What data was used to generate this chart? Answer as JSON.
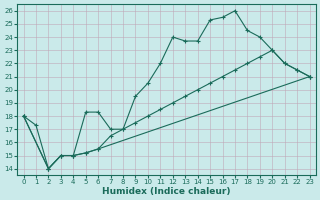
{
  "xlabel": "Humidex (Indice chaleur)",
  "ylabel": "",
  "background_color": "#caeaea",
  "line_color": "#1a6b5a",
  "xlim": [
    -0.5,
    23.5
  ],
  "ylim": [
    13.5,
    26.5
  ],
  "xticks": [
    0,
    1,
    2,
    3,
    4,
    5,
    6,
    7,
    8,
    9,
    10,
    11,
    12,
    13,
    14,
    15,
    16,
    17,
    18,
    19,
    20,
    21,
    22,
    23
  ],
  "yticks": [
    14,
    15,
    16,
    17,
    18,
    19,
    20,
    21,
    22,
    23,
    24,
    25,
    26
  ],
  "line1_x": [
    0,
    1,
    2,
    3,
    4,
    5,
    6,
    7,
    8,
    9,
    10,
    11,
    12,
    13,
    14,
    15,
    16,
    17,
    18,
    19,
    20,
    21,
    22,
    23
  ],
  "line1_y": [
    18,
    17.3,
    14,
    15,
    15,
    18.3,
    18.3,
    17,
    17,
    19.5,
    20.5,
    22,
    24,
    23.7,
    23.7,
    25.3,
    25.5,
    26,
    24.5,
    24,
    23,
    22,
    21.5,
    21
  ],
  "line2_x": [
    0,
    2,
    3,
    4,
    5,
    6,
    7,
    8,
    9,
    10,
    11,
    12,
    13,
    14,
    15,
    16,
    17,
    18,
    19,
    20,
    21,
    22,
    23
  ],
  "line2_y": [
    18,
    14,
    15,
    15,
    15.2,
    15.5,
    16.5,
    17,
    17.5,
    18,
    18.5,
    19,
    19.5,
    20,
    20.5,
    21,
    21.5,
    22,
    22.5,
    23,
    22,
    21.5,
    21
  ],
  "line3_x": [
    0,
    2,
    3,
    4,
    5,
    6,
    23
  ],
  "line3_y": [
    18,
    14,
    15,
    15,
    15.2,
    15.5,
    21
  ]
}
